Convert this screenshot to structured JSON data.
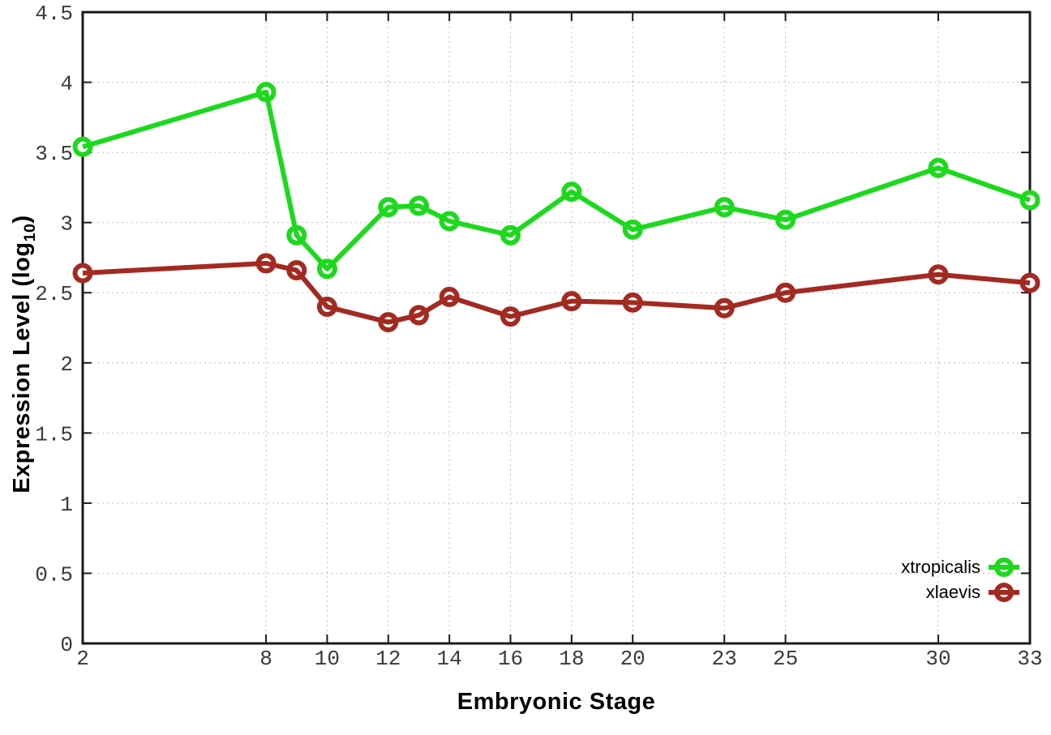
{
  "figure": {
    "xlabel": "Embryonic Stage",
    "ylabel_parts": {
      "main": "Expression Level (log",
      "sub": "10",
      "close": ")"
    }
  },
  "chart_data": {
    "type": "line",
    "title": "",
    "xlabel": "Embryonic Stage",
    "ylabel": "Expression Level (log10)",
    "x": [
      2,
      8,
      9,
      10,
      12,
      13,
      14,
      16,
      18,
      20,
      23,
      25,
      30,
      33
    ],
    "series": [
      {
        "name": "xtropicalis",
        "color": "#1dd91d",
        "values": [
          3.54,
          3.93,
          2.91,
          2.67,
          3.11,
          3.12,
          3.01,
          2.91,
          3.22,
          2.95,
          3.11,
          3.02,
          3.39,
          3.16
        ]
      },
      {
        "name": "xlaevis",
        "color": "#a32a21",
        "values": [
          2.64,
          2.71,
          2.66,
          2.4,
          2.29,
          2.34,
          2.47,
          2.33,
          2.44,
          2.43,
          2.39,
          2.5,
          2.63,
          2.57
        ]
      }
    ],
    "xticks": {
      "values": [
        2,
        8,
        10,
        12,
        14,
        16,
        18,
        20,
        23,
        25,
        30,
        33
      ],
      "labels": [
        "2",
        "8",
        "10",
        "12",
        "14",
        "16",
        "18",
        "20",
        "23",
        "25",
        "30",
        "33"
      ]
    },
    "yticks": {
      "values": [
        0,
        0.5,
        1,
        1.5,
        2,
        2.5,
        3,
        3.5,
        4,
        4.5
      ],
      "labels": [
        "0",
        "0.5",
        "1",
        "1.5",
        "2",
        "2.5",
        "3",
        "3.5",
        "4",
        "4.5"
      ]
    },
    "xlim": [
      2,
      33
    ],
    "ylim": [
      0,
      4.5
    ],
    "grid": true,
    "legend_position": "bottom-right",
    "marker": "open-circle"
  },
  "style": {
    "background": "#ffffff",
    "frame_color": "#1a1a1a",
    "grid_color": "#bdbdbd",
    "tick_label_color": "#3a3a3a"
  }
}
